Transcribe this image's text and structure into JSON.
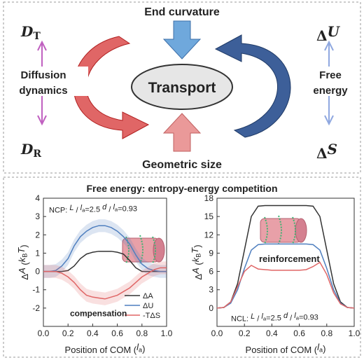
{
  "diagram": {
    "d_t": [
      {
        "i": "D"
      },
      {
        "sub": "T"
      }
    ],
    "d_r": [
      {
        "i": "D"
      },
      {
        "sub": "R"
      }
    ],
    "left_label": [
      "Diffusion",
      "dynamics"
    ],
    "top_label": "End curvature",
    "center": "Transport",
    "bottom_label": "Geometric size",
    "d_u": [
      "Δ",
      {
        "i": "U"
      }
    ],
    "right_label": [
      "Free",
      "energy"
    ],
    "d_s": [
      "Δ",
      {
        "i": "S"
      }
    ]
  },
  "panel_title": "Free energy: entropy-energy competition",
  "chart_data": [
    {
      "type": "line",
      "xlabel": [
        "Position of COM (",
        {
          "i": "l"
        },
        {
          "sub": "a"
        },
        ")"
      ],
      "ylabel": [
        "Δ",
        {
          "i": "A"
        },
        " (",
        {
          "i": "k"
        },
        {
          "sub": "B"
        },
        {
          "i": "T"
        },
        ")"
      ],
      "x": [
        0,
        0.05,
        0.1,
        0.15,
        0.2,
        0.25,
        0.3,
        0.35,
        0.4,
        0.45,
        0.5,
        0.55,
        0.6,
        0.65,
        0.7,
        0.75,
        0.8,
        0.85,
        0.9,
        0.95,
        1.0
      ],
      "series": [
        {
          "name": "ΔA",
          "color": "#333333",
          "values": [
            0,
            0,
            0,
            0,
            0.05,
            0.3,
            0.7,
            0.95,
            1.05,
            1.1,
            1.1,
            1.1,
            1.05,
            0.95,
            0.6,
            0.2,
            0,
            0,
            0,
            0,
            0
          ]
        },
        {
          "name": "ΔU",
          "color": "#4f7fbf",
          "error": 0.35,
          "values": [
            0,
            0,
            0.05,
            0.3,
            0.7,
            1.4,
            1.9,
            2.2,
            2.4,
            2.5,
            2.5,
            2.4,
            2.2,
            1.9,
            1.5,
            0.9,
            0.4,
            0.15,
            0.05,
            0,
            0
          ]
        },
        {
          "name": "-TΔS",
          "color": "#e06666",
          "error": 0.35,
          "values": [
            0,
            0,
            0,
            -0.1,
            -0.3,
            -0.6,
            -1.0,
            -1.3,
            -1.4,
            -1.45,
            -1.5,
            -1.4,
            -1.3,
            -1.1,
            -0.9,
            -0.6,
            -0.3,
            -0.1,
            0.1,
            0.2,
            0.2
          ]
        }
      ],
      "xlim": [
        0,
        1
      ],
      "ylim": [
        -3,
        4
      ],
      "xticks": [
        {
          "value": 0,
          "label": "0.0"
        },
        {
          "value": 0.2,
          "label": "0.2"
        },
        {
          "value": 0.4,
          "label": "0.4"
        },
        {
          "value": 0.6,
          "label": "0.6"
        },
        {
          "value": 0.8,
          "label": "0.8"
        },
        {
          "value": 1,
          "label": "1.0"
        }
      ],
      "yticks": [
        -2,
        -1,
        0,
        1,
        2,
        3,
        4
      ],
      "legend": "lower right",
      "annotations": [
        [
          "NCP: ",
          {
            "i": "L"
          },
          " / ",
          {
            "i": "l"
          },
          {
            "sub": "a"
          },
          "=2.5  ",
          {
            "i": "d"
          },
          " / ",
          {
            "i": "l"
          },
          {
            "sub": "a"
          },
          "=0.93"
        ],
        [
          "compensation"
        ]
      ]
    },
    {
      "type": "line",
      "xlabel": [
        "Position of COM (",
        {
          "i": "l"
        },
        {
          "sub": "a"
        },
        ")"
      ],
      "ylabel": [
        "Δ",
        {
          "i": "A"
        },
        " (",
        {
          "i": "k"
        },
        {
          "sub": "B"
        },
        {
          "i": "T"
        },
        ")"
      ],
      "x": [
        0,
        0.05,
        0.1,
        0.15,
        0.2,
        0.25,
        0.3,
        0.35,
        0.4,
        0.45,
        0.5,
        0.55,
        0.6,
        0.65,
        0.7,
        0.75,
        0.8,
        0.85,
        0.9,
        0.95,
        1.0
      ],
      "series": [
        {
          "color": "#333333",
          "values": [
            0,
            0.1,
            1,
            4,
            9.5,
            15,
            16.7,
            16.8,
            16.8,
            16.8,
            16.8,
            16.8,
            16.8,
            16.8,
            16.7,
            15,
            9.5,
            4,
            1,
            0.1,
            0
          ]
        },
        {
          "color": "#4f7fbf",
          "values": [
            0,
            0.1,
            0.8,
            3,
            6.5,
            9.5,
            10.4,
            10.5,
            10.5,
            10.5,
            10.5,
            10.5,
            10.5,
            10.5,
            10.4,
            9.5,
            6.5,
            3,
            0.8,
            0.1,
            0
          ]
        },
        {
          "color": "#e06666",
          "values": [
            0,
            0.1,
            1,
            3.5,
            6,
            7.0,
            6.4,
            6.3,
            6.2,
            6.2,
            6.2,
            6.2,
            6.2,
            6.3,
            6.8,
            7.5,
            5.5,
            2.5,
            0.7,
            0.1,
            0
          ]
        }
      ],
      "xlim": [
        0,
        1
      ],
      "ylim": [
        -3,
        18
      ],
      "xticks": [
        {
          "value": 0,
          "label": "0.0"
        },
        {
          "value": 0.2,
          "label": "0.2"
        },
        {
          "value": 0.4,
          "label": "0.4"
        },
        {
          "value": 0.6,
          "label": "0.6"
        },
        {
          "value": 0.8,
          "label": "0.8"
        },
        {
          "value": 1,
          "label": "1.0"
        }
      ],
      "yticks": [
        0,
        3,
        6,
        9,
        12,
        15,
        18
      ],
      "annotations": [
        [
          "reinforcement"
        ],
        [
          "NCL: ",
          {
            "i": "L"
          },
          " / ",
          {
            "i": "l"
          },
          {
            "sub": "a"
          },
          "=2.5  ",
          {
            "i": "d"
          },
          " / ",
          {
            "i": "l"
          },
          {
            "sub": "a"
          },
          "=0.93"
        ]
      ]
    }
  ]
}
